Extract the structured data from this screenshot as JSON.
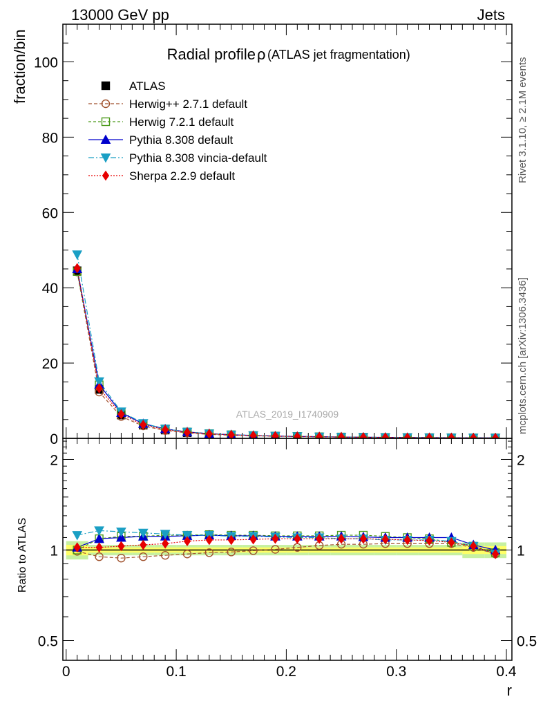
{
  "header": {
    "left": "13000 GeV pp",
    "right": "Jets",
    "title": "Radial profile",
    "title_symbol": "ρ",
    "title_sub": "(ATLAS jet fragmentation)",
    "side_top": "Rivet 3.1.10, ≥ 2.1M events",
    "side_bottom": "mcplots.cern.ch [arXiv:1306.3436]",
    "watermark": "ATLAS_2019_I1740909"
  },
  "colors": {
    "atlas": "#000000",
    "herwigpp": "#a0522d",
    "herwig7": "#4c9a1b",
    "pythia": "#0000cc",
    "vincia": "#1a9fc4",
    "sherpa": "#e60000",
    "band_inner": "#ffff66",
    "band_outer": "#c6f0a0"
  },
  "chart_data": [
    {
      "type": "line",
      "panel": "main",
      "ylabel": "fraction/bin",
      "ylim": [
        0,
        110
      ],
      "xlim": [
        -0.003,
        0.405
      ],
      "yticks": [
        0,
        20,
        40,
        60,
        80,
        100
      ],
      "x": [
        0.01,
        0.03,
        0.05,
        0.07,
        0.09,
        0.11,
        0.13,
        0.15,
        0.17,
        0.19,
        0.21,
        0.23,
        0.25,
        0.27,
        0.29,
        0.31,
        0.33,
        0.35,
        0.37,
        0.39
      ],
      "legend_position": "top-left",
      "series": [
        {
          "name": "ATLAS",
          "key": "atlas",
          "values": [
            44.5,
            13.0,
            6.2,
            3.5,
            2.2,
            1.5,
            1.1,
            0.85,
            0.68,
            0.55,
            0.45,
            0.38,
            0.32,
            0.27,
            0.23,
            0.2,
            0.17,
            0.15,
            0.13,
            0.11
          ]
        },
        {
          "name": "Herwig++ 2.7.1 default",
          "key": "herwigpp",
          "values": [
            44.2,
            12.3,
            5.8,
            3.3,
            2.1,
            1.45,
            1.05,
            0.83,
            0.67,
            0.55,
            0.46,
            0.39,
            0.33,
            0.28,
            0.24,
            0.21,
            0.18,
            0.16,
            0.13,
            0.11
          ]
        },
        {
          "name": "Herwig 7.2.1 default",
          "key": "herwig7",
          "values": [
            44.3,
            14.2,
            6.9,
            3.9,
            2.5,
            1.7,
            1.25,
            0.96,
            0.77,
            0.62,
            0.51,
            0.43,
            0.36,
            0.3,
            0.26,
            0.22,
            0.19,
            0.17,
            0.14,
            0.11
          ]
        },
        {
          "name": "Pythia 8.308 default",
          "key": "pythia",
          "values": [
            45.0,
            14.3,
            6.8,
            3.9,
            2.5,
            1.7,
            1.25,
            0.96,
            0.77,
            0.62,
            0.51,
            0.43,
            0.36,
            0.3,
            0.26,
            0.22,
            0.19,
            0.17,
            0.14,
            0.11
          ]
        },
        {
          "name": "Pythia 8.308 vincia-default",
          "key": "vincia",
          "values": [
            48.8,
            15.1,
            7.1,
            4.0,
            2.5,
            1.7,
            1.25,
            0.95,
            0.76,
            0.61,
            0.5,
            0.42,
            0.35,
            0.3,
            0.25,
            0.22,
            0.19,
            0.16,
            0.13,
            0.11
          ]
        },
        {
          "name": "Sherpa 2.2.9 default",
          "key": "sherpa",
          "values": [
            45.2,
            13.3,
            6.4,
            3.6,
            2.3,
            1.6,
            1.2,
            0.92,
            0.74,
            0.6,
            0.49,
            0.41,
            0.35,
            0.29,
            0.25,
            0.21,
            0.18,
            0.16,
            0.13,
            0.11
          ]
        }
      ]
    },
    {
      "type": "line",
      "panel": "ratio",
      "ylabel": "Ratio to ATLAS",
      "xlabel": "r",
      "scale": "log",
      "ylim": [
        0.43,
        2.35
      ],
      "xlim": [
        -0.003,
        0.405
      ],
      "yticks": [
        0.5,
        1,
        2
      ],
      "xticks": [
        0,
        0.1,
        0.2,
        0.3,
        0.4
      ],
      "x": [
        0.01,
        0.03,
        0.05,
        0.07,
        0.09,
        0.11,
        0.13,
        0.15,
        0.17,
        0.19,
        0.21,
        0.23,
        0.25,
        0.27,
        0.29,
        0.31,
        0.33,
        0.35,
        0.37,
        0.39
      ],
      "band_inner": [
        0.04,
        0.02,
        0.02,
        0.02,
        0.02,
        0.02,
        0.02,
        0.02,
        0.02,
        0.02,
        0.02,
        0.02,
        0.02,
        0.02,
        0.02,
        0.02,
        0.02,
        0.02,
        0.03,
        0.03
      ],
      "band_outer": [
        0.07,
        0.04,
        0.04,
        0.04,
        0.04,
        0.04,
        0.04,
        0.04,
        0.04,
        0.04,
        0.04,
        0.04,
        0.04,
        0.04,
        0.04,
        0.04,
        0.04,
        0.04,
        0.06,
        0.06
      ],
      "series": [
        {
          "name": "Herwig++ 2.7.1 default",
          "key": "herwigpp",
          "values": [
            0.99,
            0.95,
            0.94,
            0.95,
            0.96,
            0.97,
            0.98,
            0.985,
            0.995,
            1.005,
            1.02,
            1.035,
            1.045,
            1.045,
            1.05,
            1.05,
            1.05,
            1.05,
            1.02,
            0.97
          ]
        },
        {
          "name": "Herwig 7.2.1 default",
          "key": "herwig7",
          "values": [
            1.0,
            1.09,
            1.11,
            1.11,
            1.12,
            1.12,
            1.125,
            1.12,
            1.12,
            1.115,
            1.115,
            1.115,
            1.12,
            1.12,
            1.11,
            1.1,
            1.09,
            1.06,
            1.03,
            0.98
          ]
        },
        {
          "name": "Pythia 8.308 default",
          "key": "pythia",
          "values": [
            1.02,
            1.09,
            1.1,
            1.11,
            1.11,
            1.115,
            1.12,
            1.115,
            1.115,
            1.11,
            1.11,
            1.11,
            1.11,
            1.105,
            1.1,
            1.1,
            1.1,
            1.1,
            1.04,
            1.0
          ]
        },
        {
          "name": "Pythia 8.308 vincia-default",
          "key": "vincia",
          "values": [
            1.12,
            1.16,
            1.15,
            1.14,
            1.13,
            1.12,
            1.12,
            1.11,
            1.11,
            1.105,
            1.1,
            1.1,
            1.09,
            1.09,
            1.08,
            1.08,
            1.08,
            1.07,
            1.03,
            0.97
          ]
        },
        {
          "name": "Sherpa 2.2.9 default",
          "key": "sherpa",
          "values": [
            1.02,
            1.02,
            1.03,
            1.04,
            1.05,
            1.07,
            1.08,
            1.08,
            1.085,
            1.09,
            1.09,
            1.09,
            1.09,
            1.09,
            1.085,
            1.08,
            1.075,
            1.06,
            1.03,
            0.97
          ]
        }
      ]
    }
  ]
}
